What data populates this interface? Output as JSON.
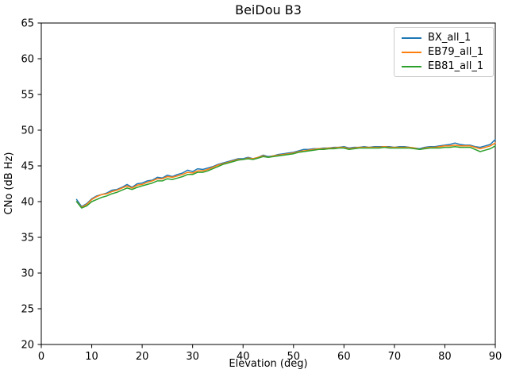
{
  "figure": {
    "background": "#ffffff",
    "spine_color": "#000000",
    "text_color": "#000000"
  },
  "chart_data": {
    "type": "line",
    "title": "BeiDou B3",
    "xlabel": "Elevation (deg)",
    "ylabel": "CNo (dB Hz)",
    "xlim": [
      0,
      90
    ],
    "ylim": [
      20,
      65
    ],
    "xticks": [
      0,
      10,
      20,
      30,
      40,
      50,
      60,
      70,
      80,
      90
    ],
    "yticks": [
      20,
      25,
      30,
      35,
      40,
      45,
      50,
      55,
      60,
      65
    ],
    "grid": false,
    "legend_position": "upper right",
    "x": [
      7,
      8,
      9,
      10,
      11,
      12,
      13,
      14,
      15,
      16,
      17,
      18,
      19,
      20,
      21,
      22,
      23,
      24,
      25,
      26,
      27,
      28,
      29,
      30,
      31,
      32,
      33,
      34,
      35,
      36,
      37,
      38,
      39,
      40,
      41,
      42,
      43,
      44,
      45,
      46,
      47,
      48,
      49,
      50,
      51,
      52,
      53,
      54,
      55,
      56,
      57,
      58,
      59,
      60,
      61,
      62,
      63,
      64,
      65,
      66,
      67,
      68,
      69,
      70,
      71,
      72,
      73,
      74,
      75,
      76,
      77,
      78,
      79,
      80,
      81,
      82,
      83,
      84,
      85,
      86,
      87,
      88,
      89,
      90
    ],
    "series": [
      {
        "name": "BX_all_1",
        "color": "#1f77b4",
        "values": [
          40.3,
          39.3,
          39.7,
          40.4,
          40.8,
          41.0,
          41.2,
          41.6,
          41.7,
          42.0,
          42.4,
          42.0,
          42.5,
          42.6,
          42.9,
          43.0,
          43.4,
          43.3,
          43.7,
          43.5,
          43.8,
          44.0,
          44.4,
          44.2,
          44.6,
          44.5,
          44.7,
          44.9,
          45.2,
          45.4,
          45.6,
          45.8,
          46.0,
          46.0,
          46.2,
          46.0,
          46.2,
          46.5,
          46.3,
          46.4,
          46.6,
          46.7,
          46.8,
          46.9,
          47.1,
          47.3,
          47.3,
          47.4,
          47.4,
          47.5,
          47.5,
          47.6,
          47.6,
          47.7,
          47.5,
          47.6,
          47.6,
          47.7,
          47.6,
          47.7,
          47.7,
          47.7,
          47.7,
          47.6,
          47.7,
          47.7,
          47.6,
          47.5,
          47.4,
          47.6,
          47.7,
          47.7,
          47.8,
          47.9,
          48.0,
          48.2,
          48.0,
          47.9,
          47.9,
          47.7,
          47.6,
          47.8,
          48.0,
          48.7
        ]
      },
      {
        "name": "EB79_all_1",
        "color": "#ff7f0e",
        "values": [
          40.0,
          39.2,
          39.6,
          40.3,
          40.7,
          41.0,
          41.1,
          41.4,
          41.6,
          41.9,
          42.2,
          41.9,
          42.3,
          42.4,
          42.7,
          42.9,
          43.2,
          43.2,
          43.5,
          43.4,
          43.6,
          43.8,
          44.1,
          44.0,
          44.3,
          44.3,
          44.5,
          44.8,
          45.1,
          45.3,
          45.5,
          45.7,
          45.9,
          45.9,
          46.1,
          46.0,
          46.2,
          46.4,
          46.2,
          46.4,
          46.5,
          46.6,
          46.7,
          46.8,
          47.0,
          47.1,
          47.2,
          47.3,
          47.4,
          47.4,
          47.5,
          47.5,
          47.6,
          47.6,
          47.4,
          47.5,
          47.6,
          47.6,
          47.6,
          47.6,
          47.6,
          47.7,
          47.6,
          47.6,
          47.6,
          47.6,
          47.6,
          47.5,
          47.3,
          47.5,
          47.6,
          47.6,
          47.7,
          47.8,
          47.8,
          47.9,
          47.8,
          47.8,
          47.8,
          47.6,
          47.4,
          47.6,
          47.8,
          48.2
        ]
      },
      {
        "name": "EB81_all_1",
        "color": "#2ca02c",
        "values": [
          40.0,
          39.1,
          39.4,
          40.0,
          40.3,
          40.6,
          40.8,
          41.1,
          41.3,
          41.6,
          41.9,
          41.7,
          42.0,
          42.2,
          42.4,
          42.6,
          42.9,
          42.9,
          43.2,
          43.1,
          43.3,
          43.5,
          43.8,
          43.8,
          44.1,
          44.1,
          44.3,
          44.6,
          44.9,
          45.2,
          45.4,
          45.6,
          45.8,
          45.9,
          46.0,
          45.9,
          46.1,
          46.3,
          46.2,
          46.3,
          46.4,
          46.5,
          46.6,
          46.7,
          46.9,
          47.0,
          47.1,
          47.2,
          47.3,
          47.3,
          47.4,
          47.4,
          47.5,
          47.5,
          47.3,
          47.4,
          47.5,
          47.5,
          47.5,
          47.5,
          47.5,
          47.6,
          47.5,
          47.5,
          47.5,
          47.5,
          47.5,
          47.4,
          47.3,
          47.4,
          47.5,
          47.5,
          47.5,
          47.6,
          47.6,
          47.7,
          47.6,
          47.6,
          47.6,
          47.3,
          47.0,
          47.2,
          47.4,
          47.8
        ]
      }
    ]
  }
}
